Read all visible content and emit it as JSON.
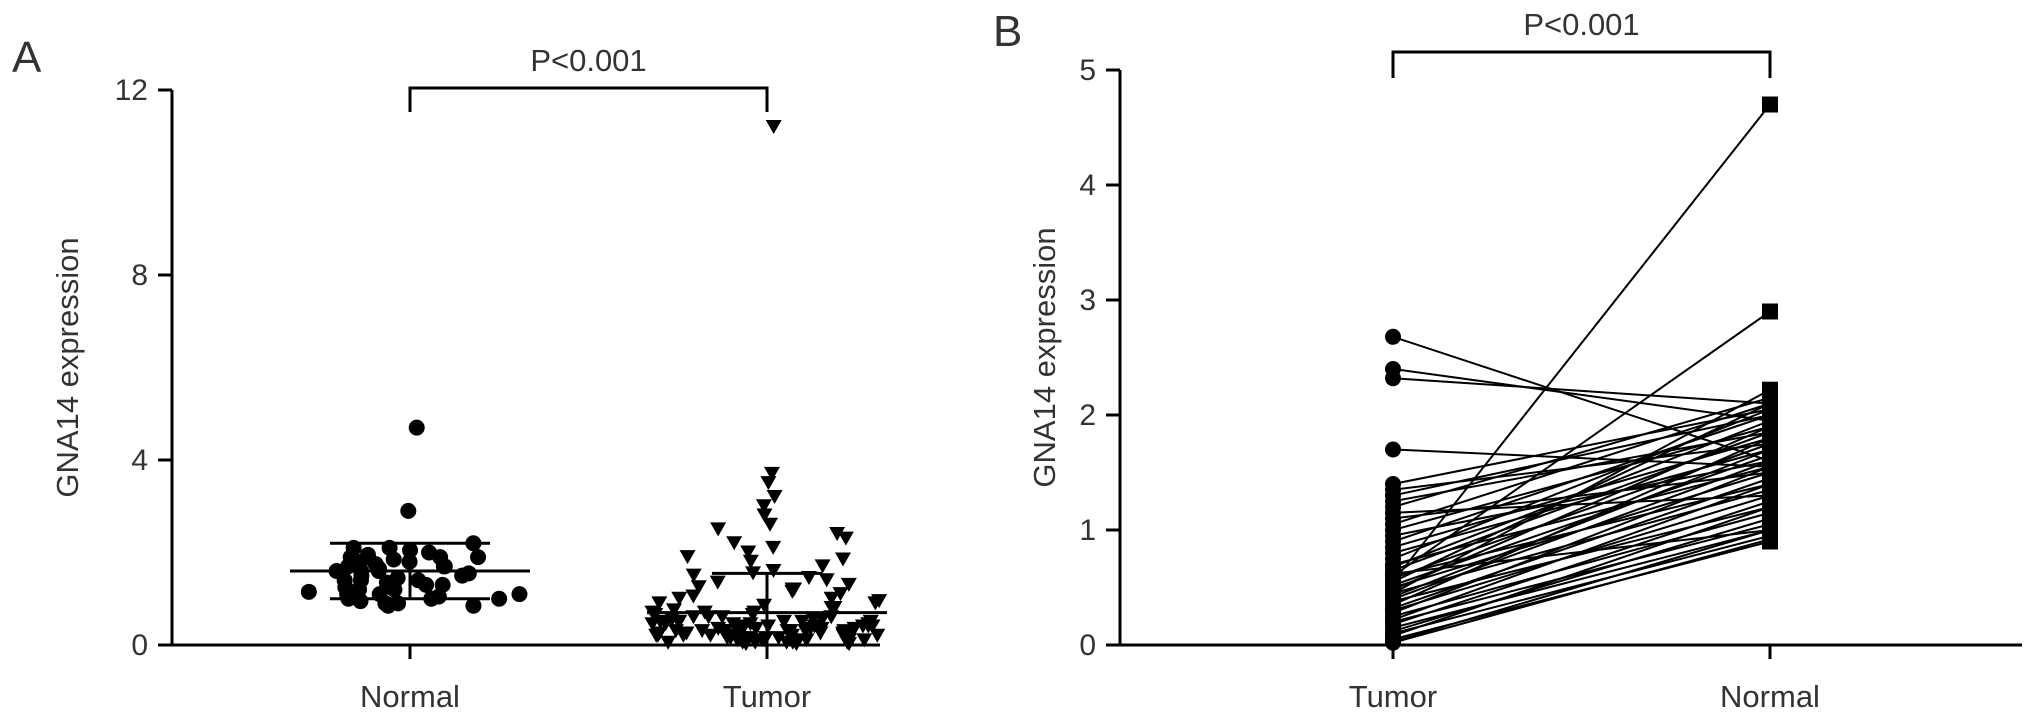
{
  "chart_data": [
    {
      "panel": "A",
      "type": "scatter",
      "ylabel": "GNA14 expression",
      "ylim": [
        0,
        12
      ],
      "yticks": [
        0,
        4,
        8,
        12
      ],
      "categories": [
        "Normal",
        "Tumor"
      ],
      "significance": "P<0.001",
      "series": [
        {
          "category": "Normal",
          "marker": "circle",
          "mean": 1.6,
          "sd_low": 1.0,
          "sd_high": 2.2,
          "values": [
            4.7,
            2.9,
            2.2,
            2.1,
            2.1,
            2.05,
            2.0,
            1.95,
            1.9,
            1.9,
            1.85,
            1.8,
            1.8,
            1.75,
            1.7,
            1.7,
            1.65,
            1.6,
            1.6,
            1.55,
            1.5,
            1.5,
            1.45,
            1.4,
            1.4,
            1.35,
            1.3,
            1.3,
            1.25,
            1.2,
            1.2,
            1.15,
            1.1,
            1.1,
            1.05,
            1.0,
            1.0,
            0.95,
            0.9,
            0.9,
            0.9,
            0.85,
            0.85,
            1.3,
            1.1,
            1.6,
            1.9,
            1.4,
            1.0,
            1.7
          ]
        },
        {
          "category": "Tumor",
          "marker": "triangle-down",
          "mean": 0.7,
          "sd_low": 0.0,
          "sd_high": 1.55,
          "values": [
            11.2,
            3.7,
            3.5,
            3.2,
            3.0,
            2.8,
            2.6,
            2.5,
            2.4,
            2.3,
            2.2,
            2.1,
            2.0,
            1.9,
            1.85,
            1.8,
            1.7,
            1.6,
            1.55,
            1.5,
            1.45,
            1.4,
            1.35,
            1.3,
            1.25,
            1.2,
            1.2,
            1.15,
            1.1,
            1.05,
            1.0,
            1.0,
            0.95,
            0.9,
            0.9,
            0.85,
            0.8,
            0.8,
            0.75,
            0.7,
            0.7,
            0.7,
            0.65,
            0.65,
            0.6,
            0.6,
            0.6,
            0.55,
            0.55,
            0.5,
            0.5,
            0.5,
            0.5,
            0.45,
            0.45,
            0.45,
            0.4,
            0.4,
            0.4,
            0.4,
            0.35,
            0.35,
            0.35,
            0.3,
            0.3,
            0.3,
            0.3,
            0.25,
            0.25,
            0.25,
            0.2,
            0.2,
            0.2,
            0.2,
            0.15,
            0.15,
            0.15,
            0.1,
            0.1,
            0.1,
            0.1,
            0.05,
            0.05,
            0.05,
            0.05,
            0.02,
            0.02,
            0.02,
            0.4,
            0.3,
            0.2,
            0.1,
            0.5,
            0.35,
            0.25,
            0.15,
            0.45,
            0.05,
            0.6,
            0.3,
            0.2,
            0.1,
            0.4,
            0.3,
            0.15,
            0.55,
            0.25,
            0.35,
            0.05,
            0.2,
            0.1,
            0.45,
            0.3,
            0.15,
            0.4,
            0.2,
            0.3,
            0.1,
            0.5,
            0.25
          ]
        }
      ]
    },
    {
      "panel": "B",
      "type": "line",
      "ylabel": "GNA14 expression",
      "ylim": [
        0,
        5
      ],
      "yticks": [
        0,
        1,
        2,
        3,
        4,
        5
      ],
      "categories": [
        "Tumor",
        "Normal"
      ],
      "significance": "P<0.001",
      "pairs": [
        [
          0.55,
          4.7
        ],
        [
          0.6,
          2.9
        ],
        [
          2.68,
          1.6
        ],
        [
          2.4,
          1.95
        ],
        [
          2.32,
          2.1
        ],
        [
          1.7,
          1.55
        ],
        [
          1.4,
          2.05
        ],
        [
          1.35,
          1.75
        ],
        [
          1.3,
          2.0
        ],
        [
          1.25,
          1.85
        ],
        [
          1.2,
          2.15
        ],
        [
          1.1,
          1.5
        ],
        [
          1.05,
          2.1
        ],
        [
          1.0,
          1.9
        ],
        [
          0.95,
          1.6
        ],
        [
          0.9,
          2.0
        ],
        [
          0.85,
          1.8
        ],
        [
          0.8,
          1.7
        ],
        [
          0.75,
          2.05
        ],
        [
          0.7,
          1.55
        ],
        [
          0.68,
          1.95
        ],
        [
          0.65,
          1.85
        ],
        [
          0.6,
          1.4
        ],
        [
          0.58,
          1.75
        ],
        [
          0.55,
          2.1
        ],
        [
          0.52,
          1.65
        ],
        [
          0.5,
          1.5
        ],
        [
          0.48,
          1.9
        ],
        [
          0.45,
          1.35
        ],
        [
          0.42,
          1.7
        ],
        [
          0.4,
          1.6
        ],
        [
          0.38,
          1.2
        ],
        [
          0.35,
          1.8
        ],
        [
          0.32,
          1.45
        ],
        [
          0.3,
          1.3
        ],
        [
          0.28,
          1.55
        ],
        [
          0.25,
          1.15
        ],
        [
          0.22,
          1.4
        ],
        [
          0.2,
          1.05
        ],
        [
          0.18,
          1.25
        ],
        [
          0.15,
          1.0
        ],
        [
          0.12,
          1.1
        ],
        [
          0.1,
          0.95
        ],
        [
          0.08,
          1.2
        ],
        [
          0.05,
          0.9
        ],
        [
          0.03,
          1.0
        ],
        [
          0.02,
          0.92
        ],
        [
          0.45,
          2.22
        ],
        [
          0.62,
          1.0
        ],
        [
          1.15,
          1.3
        ]
      ]
    }
  ]
}
